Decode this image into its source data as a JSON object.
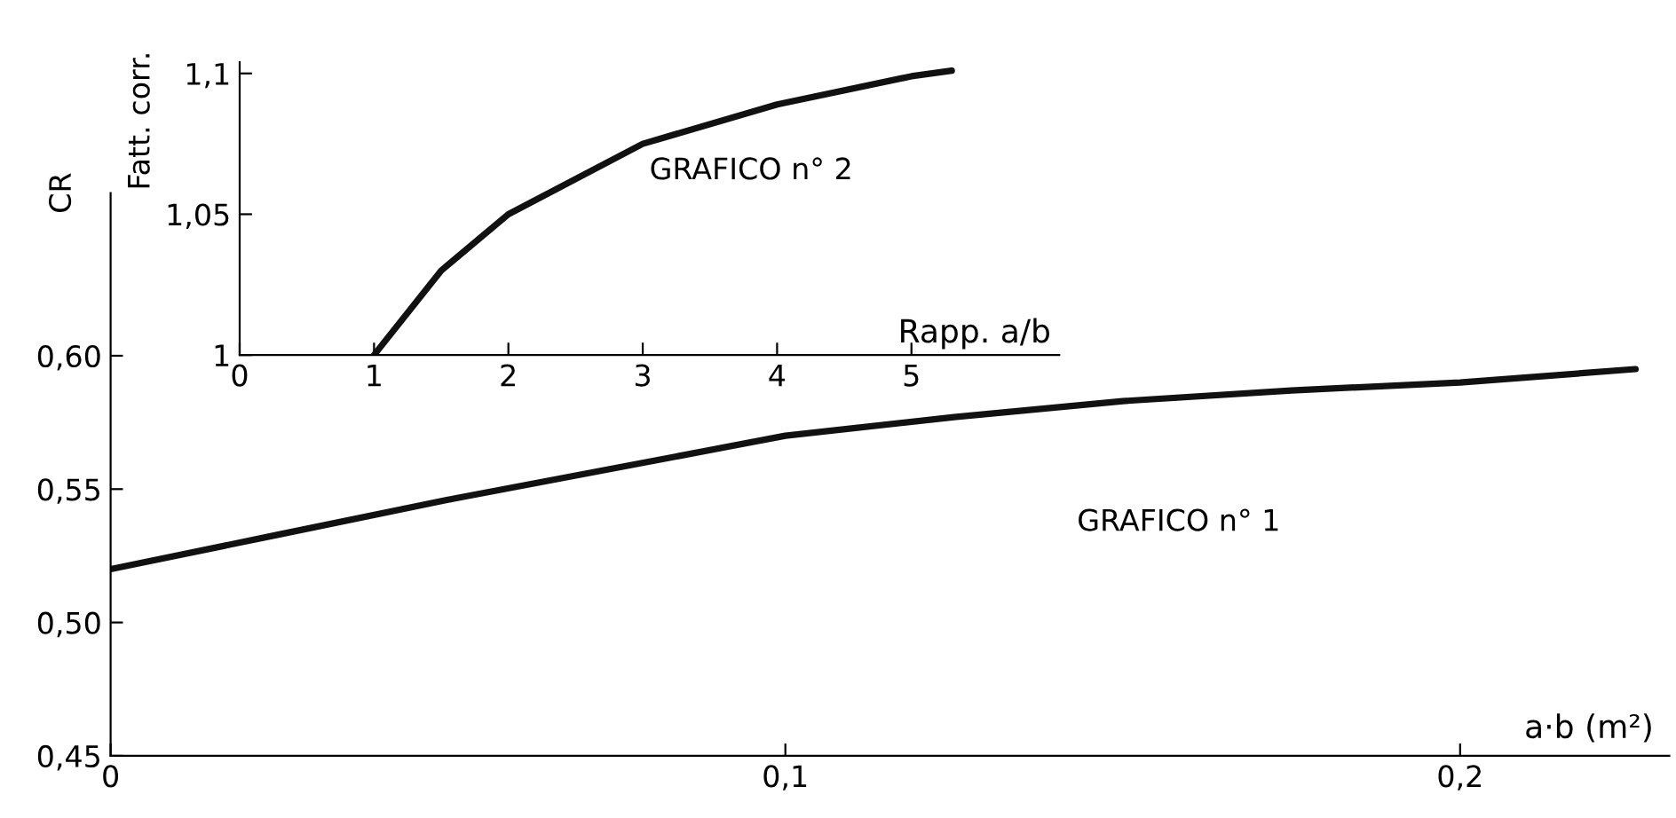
{
  "chart_data": [
    {
      "type": "line",
      "xlabel": "a·b (m²)",
      "ylabel": "CR",
      "annotations": [
        "GRAFICO n° 1"
      ],
      "x": [
        0,
        0.025,
        0.05,
        0.075,
        0.1,
        0.125,
        0.15,
        0.175,
        0.2,
        0.226
      ],
      "values": [
        0.52,
        0.533,
        0.546,
        0.558,
        0.57,
        0.577,
        0.583,
        0.587,
        0.59,
        0.595
      ],
      "color": "#111111",
      "xlim": [
        0,
        0.231
      ],
      "ylim": [
        0.45,
        0.661
      ],
      "xticks": [
        0,
        {
          "value": 0.1,
          "label": "0,1"
        },
        {
          "value": 0.2,
          "label": "0,2"
        }
      ],
      "yticks": [
        {
          "value": 0.45,
          "label": "0,45"
        },
        {
          "value": 0.5,
          "label": "0,50"
        },
        {
          "value": 0.55,
          "label": "0,55"
        },
        {
          "value": 0.6,
          "label": "0,60"
        }
      ],
      "grid": false,
      "legend": false,
      "marker": "none",
      "line_style": "solid"
    },
    {
      "type": "line",
      "xlabel": "Rapp. a/b",
      "ylabel": "Fatt. corr.",
      "annotations": [
        "GRAFICO n° 2"
      ],
      "x": [
        1,
        1.5,
        2,
        3,
        4,
        5,
        5.3
      ],
      "values": [
        1,
        1.03,
        1.05,
        1.075,
        1.089,
        1.099,
        1.101
      ],
      "color": "#111111",
      "xlim": [
        0,
        6.1
      ],
      "ylim": [
        1,
        1.104
      ],
      "xticks": [
        0,
        1,
        2,
        3,
        4,
        5
      ],
      "yticks": [
        1,
        {
          "value": 1.05,
          "label": "1,05"
        },
        {
          "value": 1.1,
          "label": "1,1"
        }
      ],
      "grid": false,
      "legend": false,
      "marker": "none",
      "line_style": "solid"
    }
  ]
}
